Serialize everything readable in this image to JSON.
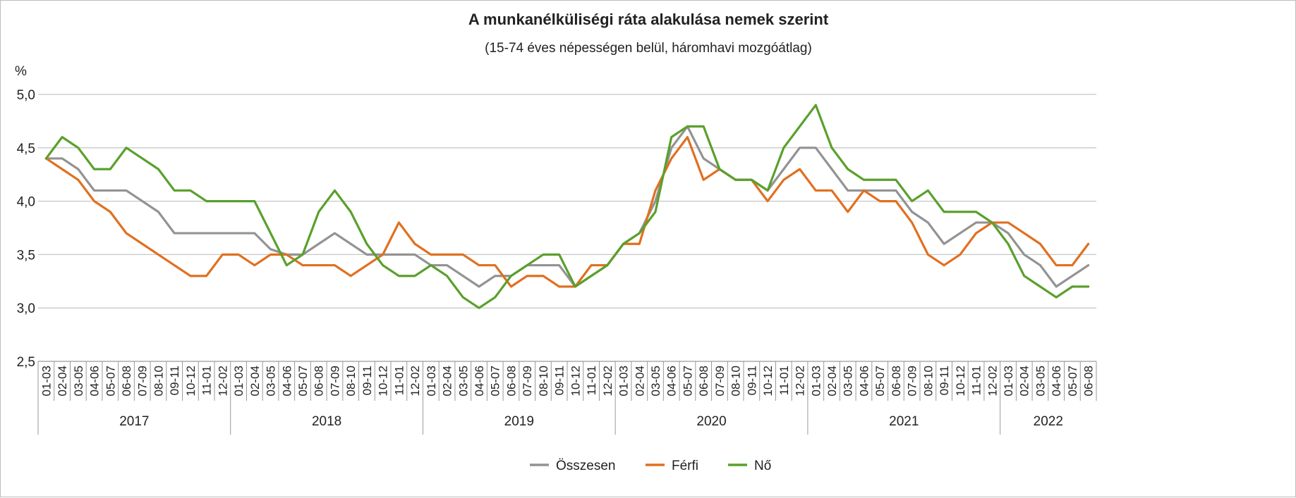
{
  "chart_data": {
    "type": "line",
    "title": "A munkanélküliségi ráta alakulása nemek szerint",
    "subtitle": "(15-74 éves népességen belül, háromhavi mozgóátlag)",
    "ylabel": "%",
    "ylim": [
      2.5,
      5.0
    ],
    "yticks": [
      "5,0",
      "4,5",
      "4,0",
      "3,5",
      "3,0",
      "2,5"
    ],
    "grid": true,
    "legend_position": "bottom",
    "years": [
      {
        "label": "2017",
        "count": 12
      },
      {
        "label": "2018",
        "count": 12
      },
      {
        "label": "2019",
        "count": 12
      },
      {
        "label": "2020",
        "count": 12
      },
      {
        "label": "2021",
        "count": 12
      },
      {
        "label": "2022",
        "count": 6
      }
    ],
    "categories": [
      "01-03",
      "02-04",
      "03-05",
      "04-06",
      "05-07",
      "06-08",
      "07-09",
      "08-10",
      "09-11",
      "10-12",
      "11-01",
      "12-02",
      "01-03",
      "02-04",
      "03-05",
      "04-06",
      "05-07",
      "06-08",
      "07-09",
      "08-10",
      "09-11",
      "10-12",
      "11-01",
      "12-02",
      "01-03",
      "02-04",
      "03-05",
      "04-06",
      "05-07",
      "06-08",
      "07-09",
      "08-10",
      "09-11",
      "10-12",
      "11-01",
      "12-02",
      "01-03",
      "02-04",
      "03-05",
      "04-06",
      "05-07",
      "06-08",
      "07-09",
      "08-10",
      "09-11",
      "10-12",
      "11-01",
      "12-02",
      "01-03",
      "02-04",
      "03-05",
      "04-06",
      "05-07",
      "06-08",
      "07-09",
      "08-10",
      "09-11",
      "10-12",
      "11-01",
      "12-02",
      "01-03",
      "02-04",
      "03-05",
      "04-06",
      "05-07",
      "06-08"
    ],
    "series": [
      {
        "name": "Összesen",
        "color": "#939393",
        "values": [
          4.4,
          4.4,
          4.3,
          4.1,
          4.1,
          4.1,
          4.0,
          3.9,
          3.7,
          3.7,
          3.7,
          3.7,
          3.7,
          3.7,
          3.55,
          3.5,
          3.5,
          3.6,
          3.7,
          3.6,
          3.5,
          3.5,
          3.5,
          3.5,
          3.4,
          3.4,
          3.3,
          3.2,
          3.3,
          3.3,
          3.4,
          3.4,
          3.4,
          3.2,
          3.3,
          3.4,
          3.6,
          3.7,
          4.0,
          4.5,
          4.7,
          4.4,
          4.3,
          4.2,
          4.2,
          4.1,
          4.3,
          4.5,
          4.5,
          4.3,
          4.1,
          4.1,
          4.1,
          4.1,
          3.9,
          3.8,
          3.6,
          3.7,
          3.8,
          3.8,
          3.7,
          3.5,
          3.4,
          3.2,
          3.3,
          3.4
        ]
      },
      {
        "name": "Férfi",
        "color": "#e07020",
        "values": [
          4.4,
          4.3,
          4.2,
          4.0,
          3.9,
          3.7,
          3.6,
          3.5,
          3.4,
          3.3,
          3.3,
          3.5,
          3.5,
          3.4,
          3.5,
          3.5,
          3.4,
          3.4,
          3.4,
          3.3,
          3.4,
          3.5,
          3.8,
          3.6,
          3.5,
          3.5,
          3.5,
          3.4,
          3.4,
          3.2,
          3.3,
          3.3,
          3.2,
          3.2,
          3.4,
          3.4,
          3.6,
          3.6,
          4.1,
          4.4,
          4.6,
          4.2,
          4.3,
          4.2,
          4.2,
          4.0,
          4.2,
          4.3,
          4.1,
          4.1,
          3.9,
          4.1,
          4.0,
          4.0,
          3.8,
          3.5,
          3.4,
          3.5,
          3.7,
          3.8,
          3.8,
          3.7,
          3.6,
          3.4,
          3.4,
          3.6
        ]
      },
      {
        "name": "Nő",
        "color": "#5aa02c",
        "values": [
          4.4,
          4.6,
          4.5,
          4.3,
          4.3,
          4.5,
          4.4,
          4.3,
          4.1,
          4.1,
          4.0,
          4.0,
          4.0,
          4.0,
          3.7,
          3.4,
          3.5,
          3.9,
          4.1,
          3.9,
          3.6,
          3.4,
          3.3,
          3.3,
          3.4,
          3.3,
          3.1,
          3.0,
          3.1,
          3.3,
          3.4,
          3.5,
          3.5,
          3.2,
          3.3,
          3.4,
          3.6,
          3.7,
          3.9,
          4.6,
          4.7,
          4.7,
          4.3,
          4.2,
          4.2,
          4.1,
          4.5,
          4.7,
          4.9,
          4.5,
          4.3,
          4.2,
          4.2,
          4.2,
          4.0,
          4.1,
          3.9,
          3.9,
          3.9,
          3.8,
          3.6,
          3.3,
          3.2,
          3.1,
          3.2,
          3.2
        ]
      }
    ]
  }
}
